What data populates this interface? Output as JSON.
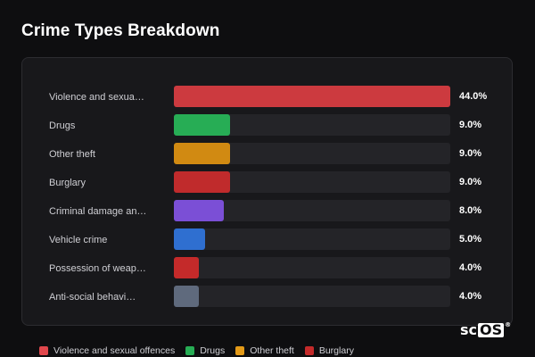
{
  "title": "Crime Types Breakdown",
  "logo": {
    "prefix": "sc",
    "box": "OS",
    "reg": "®"
  },
  "chart_data": {
    "type": "bar",
    "orientation": "horizontal",
    "categories": [
      "Violence and sexua…",
      "Drugs",
      "Other theft",
      "Burglary",
      "Criminal damage an…",
      "Vehicle crime",
      "Possession of weap…",
      "Anti-social behavi…"
    ],
    "values": [
      44.0,
      9.0,
      9.0,
      9.0,
      8.0,
      5.0,
      4.0,
      4.0
    ],
    "value_labels": [
      "44.0%",
      "9.0%",
      "9.0%",
      "9.0%",
      "8.0%",
      "5.0%",
      "4.0%",
      "4.0%"
    ],
    "colors": [
      "#cc3a3f",
      "#27ad55",
      "#d18a12",
      "#c02b2c",
      "#7b4fd6",
      "#2f6fd0",
      "#c42a2a",
      "#5f6a7d"
    ],
    "xlim": [
      0,
      44
    ],
    "legend": {
      "placement": "bottom",
      "entries": [
        {
          "label": "Violence and sexual offences",
          "color": "#e0474c"
        },
        {
          "label": "Drugs",
          "color": "#27ad55"
        },
        {
          "label": "Other theft",
          "color": "#e39a18"
        },
        {
          "label": "Burglary",
          "color": "#c42a2a"
        }
      ]
    }
  }
}
